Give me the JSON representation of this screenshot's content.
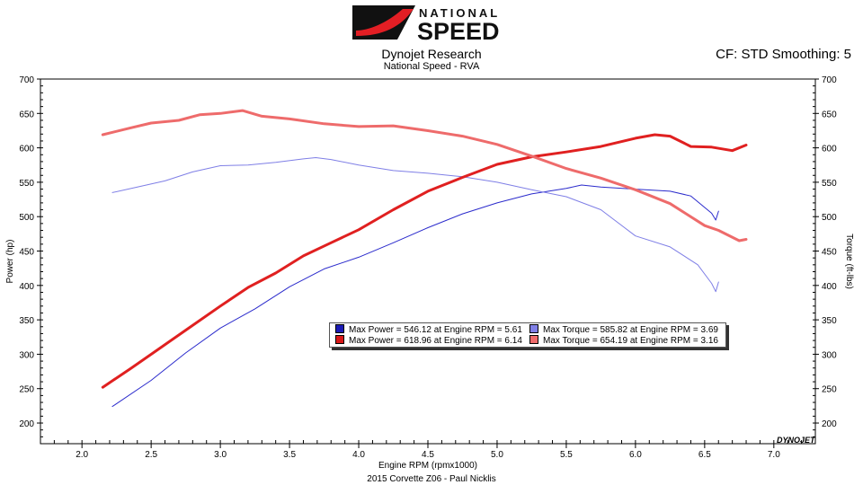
{
  "logo": {
    "line1": "NATIONAL",
    "line2": "SPEED"
  },
  "header": {
    "title": "Dynojet Research",
    "subtitle": "National Speed - RVA",
    "cf": "CF: STD Smoothing: 5"
  },
  "footer": "2015 Corvette Z06 - Paul Nicklis",
  "badge": "DYNOJET",
  "colors": {
    "run1_power": "#2b2bcc",
    "run1_torque": "#7f7fe6",
    "run2_power": "#e02020",
    "run2_torque": "#ee6b6b"
  },
  "legend": [
    {
      "text": "Max Power = 546.12 at Engine RPM = 5.61",
      "color": "#1b1bb5"
    },
    {
      "text": "Max Torque = 585.82 at Engine RPM = 3.69",
      "color": "#7f7fe6"
    },
    {
      "text": "Max Power = 618.96 at Engine RPM = 6.14",
      "color": "#d81818"
    },
    {
      "text": "Max Torque = 654.19 at Engine RPM = 3.16",
      "color": "#ee6b6b"
    }
  ],
  "chart_data": {
    "type": "line",
    "xlabel": "Engine RPM (rpmx1000)",
    "ylabel": "Power (hp)",
    "y2label": "Torque (ft-lbs)",
    "xlim": [
      1.7,
      7.3
    ],
    "ylim": [
      170,
      700
    ],
    "x_ticks": [
      "2.0",
      "2.5",
      "3.0",
      "3.5",
      "4.0",
      "4.5",
      "5.0",
      "5.5",
      "6.0",
      "6.5",
      "7.0"
    ],
    "y_ticks": [
      "200",
      "250",
      "300",
      "350",
      "400",
      "450",
      "500",
      "550",
      "600",
      "650",
      "700"
    ],
    "y2_ticks": [
      "200",
      "250",
      "300",
      "350",
      "400",
      "450",
      "500",
      "550",
      "600",
      "650",
      "700"
    ],
    "grid": false,
    "series": [
      {
        "legend_index": 0,
        "axis": "power",
        "color": "#2b2bcc",
        "width": 1,
        "x": [
          2.22,
          2.5,
          2.75,
          3.0,
          3.25,
          3.5,
          3.75,
          4.0,
          4.25,
          4.5,
          4.75,
          5.0,
          5.25,
          5.5,
          5.61,
          5.75,
          6.0,
          6.25,
          6.4,
          6.55,
          6.58,
          6.6
        ],
        "y": [
          224,
          262,
          302,
          338,
          366,
          398,
          424,
          441,
          462,
          484,
          504,
          520,
          533,
          541,
          546,
          543,
          540,
          537,
          530,
          505,
          495,
          508
        ]
      },
      {
        "legend_index": 1,
        "axis": "torque",
        "color": "#7f7fe6",
        "width": 1,
        "x": [
          2.22,
          2.4,
          2.6,
          2.8,
          3.0,
          3.2,
          3.4,
          3.6,
          3.69,
          3.8,
          4.0,
          4.25,
          4.5,
          4.75,
          5.0,
          5.25,
          5.5,
          5.75,
          6.0,
          6.25,
          6.45,
          6.55,
          6.58,
          6.6
        ],
        "y": [
          535,
          543,
          552,
          565,
          574,
          575,
          579,
          584,
          585.8,
          583,
          575,
          567,
          563,
          558,
          550,
          539,
          529,
          510,
          472,
          456,
          430,
          403,
          391,
          405
        ]
      },
      {
        "legend_index": 2,
        "axis": "power",
        "color": "#e02020",
        "width": 3,
        "x": [
          2.15,
          2.35,
          2.55,
          2.75,
          3.0,
          3.2,
          3.4,
          3.6,
          3.8,
          4.0,
          4.25,
          4.5,
          4.75,
          5.0,
          5.25,
          5.5,
          5.75,
          6.0,
          6.14,
          6.25,
          6.4,
          6.55,
          6.7,
          6.8
        ],
        "y": [
          252,
          279,
          307,
          335,
          370,
          397,
          418,
          443,
          462,
          481,
          510,
          537,
          557,
          576,
          587,
          594,
          602,
          614,
          619,
          617,
          602,
          601,
          596,
          604
        ]
      },
      {
        "legend_index": 3,
        "axis": "torque",
        "color": "#ee6b6b",
        "width": 3,
        "x": [
          2.15,
          2.35,
          2.5,
          2.7,
          2.85,
          3.0,
          3.16,
          3.3,
          3.5,
          3.75,
          4.0,
          4.25,
          4.5,
          4.75,
          5.0,
          5.25,
          5.5,
          5.75,
          6.0,
          6.25,
          6.5,
          6.6,
          6.75,
          6.8
        ],
        "y": [
          619,
          629,
          636,
          640,
          648,
          650,
          654.2,
          646,
          642,
          635,
          631,
          632,
          625,
          617,
          605,
          588,
          570,
          556,
          539,
          519,
          487,
          480,
          465,
          467
        ]
      }
    ]
  }
}
